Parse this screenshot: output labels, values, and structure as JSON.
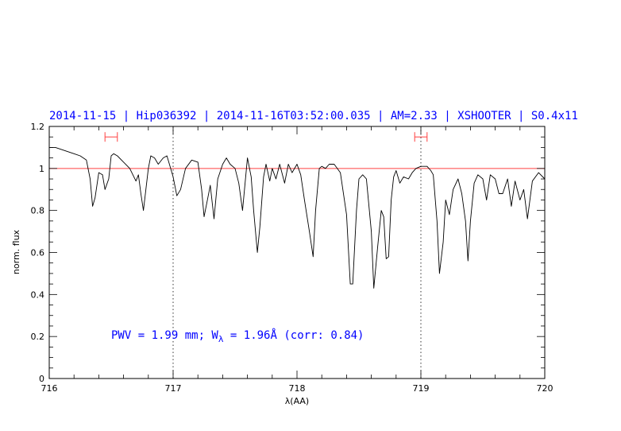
{
  "chart_data": {
    "type": "line",
    "title": "2014-11-15 | Hip036392 | 2014-11-16T03:52:00.035 | AM=2.33 | XSHOOTER | S0.4x11",
    "xlabel": "λ(AA)",
    "ylabel": "norm. flux",
    "xlim": [
      716,
      720
    ],
    "ylim": [
      0,
      1.2
    ],
    "x_ticks": [
      "716",
      "717",
      "718",
      "719",
      "720"
    ],
    "y_ticks": [
      "0",
      "0.2",
      "0.4",
      "0.6",
      "0.8",
      "1",
      "1.2"
    ],
    "x_tick_values": [
      716,
      717,
      718,
      719,
      720
    ],
    "y_tick_values": [
      0,
      0.2,
      0.4,
      0.6,
      0.8,
      1.0,
      1.2
    ],
    "reference_line": {
      "y": 1.0,
      "color": "#ff4040"
    },
    "vertical_markers": [
      717,
      719
    ],
    "ranges": [
      {
        "x0": 716.45,
        "x1": 716.55,
        "y": 1.15,
        "color": "#ff4040"
      },
      {
        "x0": 718.95,
        "x1": 719.05,
        "y": 1.15,
        "color": "#ff4040"
      }
    ],
    "annotation": {
      "prefix": "PWV = 1.99 mm; W",
      "subscript": "λ",
      "suffix": " = 1.96Å (corr: 0.84)",
      "x": 716.5,
      "y": 0.19
    },
    "series": [
      {
        "color": "#000000",
        "x": [
          716.0,
          716.05,
          716.1,
          716.15,
          716.2,
          716.25,
          716.3,
          716.33,
          716.35,
          716.37,
          716.4,
          716.43,
          716.45,
          716.48,
          716.5,
          716.52,
          716.55,
          716.6,
          716.65,
          716.7,
          716.72,
          716.74,
          716.76,
          716.78,
          716.8,
          716.82,
          716.85,
          716.88,
          716.92,
          716.95,
          716.98,
          717.0,
          717.03,
          717.06,
          717.1,
          717.15,
          717.2,
          717.23,
          717.25,
          717.28,
          717.3,
          717.33,
          717.36,
          717.4,
          717.43,
          717.46,
          717.5,
          717.53,
          717.56,
          717.6,
          717.63,
          717.65,
          717.68,
          717.7,
          717.73,
          717.75,
          717.78,
          717.8,
          717.83,
          717.86,
          717.9,
          717.93,
          717.96,
          718.0,
          718.03,
          718.06,
          718.1,
          718.13,
          718.15,
          718.18,
          718.2,
          718.23,
          718.26,
          718.3,
          718.35,
          718.4,
          718.43,
          718.45,
          718.48,
          718.5,
          718.53,
          718.56,
          718.6,
          718.62,
          718.65,
          718.68,
          718.7,
          718.72,
          718.74,
          718.76,
          718.78,
          718.8,
          718.83,
          718.86,
          718.9,
          718.93,
          718.96,
          719.0,
          719.05,
          719.08,
          719.1,
          719.13,
          719.15,
          719.18,
          719.2,
          719.23,
          719.26,
          719.3,
          719.33,
          719.36,
          719.38,
          719.4,
          719.43,
          719.46,
          719.5,
          719.53,
          719.56,
          719.6,
          719.63,
          719.66,
          719.7,
          719.73,
          719.76,
          719.8,
          719.83,
          719.86,
          719.9,
          719.95,
          720.0
        ],
        "y": [
          1.1,
          1.1,
          1.09,
          1.08,
          1.07,
          1.06,
          1.04,
          0.95,
          0.82,
          0.86,
          0.98,
          0.97,
          0.9,
          0.95,
          1.06,
          1.07,
          1.06,
          1.03,
          1.0,
          0.94,
          0.97,
          0.88,
          0.8,
          0.9,
          1.0,
          1.06,
          1.05,
          1.02,
          1.05,
          1.06,
          1.0,
          0.96,
          0.87,
          0.9,
          1.0,
          1.04,
          1.03,
          0.9,
          0.77,
          0.86,
          0.92,
          0.76,
          0.95,
          1.02,
          1.05,
          1.02,
          1.0,
          0.93,
          0.8,
          1.05,
          0.96,
          0.8,
          0.6,
          0.72,
          0.96,
          1.02,
          0.94,
          1.0,
          0.95,
          1.02,
          0.93,
          1.02,
          0.98,
          1.02,
          0.97,
          0.85,
          0.7,
          0.58,
          0.8,
          1.0,
          1.01,
          1.0,
          1.02,
          1.02,
          0.98,
          0.78,
          0.45,
          0.45,
          0.8,
          0.95,
          0.97,
          0.95,
          0.7,
          0.43,
          0.62,
          0.8,
          0.77,
          0.57,
          0.58,
          0.85,
          0.96,
          0.99,
          0.93,
          0.96,
          0.95,
          0.98,
          1.0,
          1.01,
          1.01,
          0.99,
          0.97,
          0.75,
          0.5,
          0.65,
          0.85,
          0.78,
          0.9,
          0.95,
          0.88,
          0.75,
          0.56,
          0.75,
          0.93,
          0.97,
          0.95,
          0.85,
          0.97,
          0.95,
          0.88,
          0.88,
          0.95,
          0.82,
          0.94,
          0.85,
          0.9,
          0.76,
          0.94,
          0.98,
          0.95
        ]
      }
    ]
  }
}
